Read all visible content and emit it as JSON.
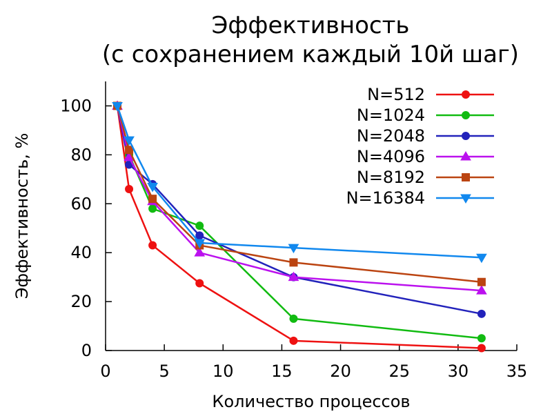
{
  "chart_data": {
    "type": "line",
    "title": "Эффективность",
    "subtitle": "(с сохранением каждый 10й шаг)",
    "xlabel": "Количество процессов",
    "ylabel": "Эффективность, %",
    "xlim": [
      0,
      35
    ],
    "ylim": [
      0,
      110
    ],
    "xticks": [
      0,
      5,
      10,
      15,
      20,
      25,
      30,
      35
    ],
    "yticks": [
      0,
      20,
      40,
      60,
      80,
      100
    ],
    "grid": false,
    "legend_position": "top-right",
    "x": [
      1,
      2,
      4,
      8,
      16,
      32
    ],
    "series": [
      {
        "name": "N=512",
        "color": "#ee1111",
        "marker": "circle",
        "values": [
          100,
          66,
          43,
          27.5,
          4,
          1
        ]
      },
      {
        "name": "N=1024",
        "color": "#11bb11",
        "marker": "circle",
        "values": [
          100,
          80,
          58,
          51,
          13,
          5
        ]
      },
      {
        "name": "N=2048",
        "color": "#2222bb",
        "marker": "circle",
        "values": [
          100,
          76,
          68,
          47,
          30,
          15
        ]
      },
      {
        "name": "N=4096",
        "color": "#bb11ee",
        "marker": "triangle-up",
        "values": [
          100,
          79,
          61,
          40,
          30,
          24.5
        ]
      },
      {
        "name": "N=8192",
        "color": "#bb4411",
        "marker": "square",
        "values": [
          100,
          82,
          62,
          43,
          36,
          28
        ]
      },
      {
        "name": "N=16384",
        "color": "#1188ee",
        "marker": "triangle-down",
        "values": [
          100,
          86,
          67,
          44,
          42,
          38
        ]
      }
    ]
  }
}
